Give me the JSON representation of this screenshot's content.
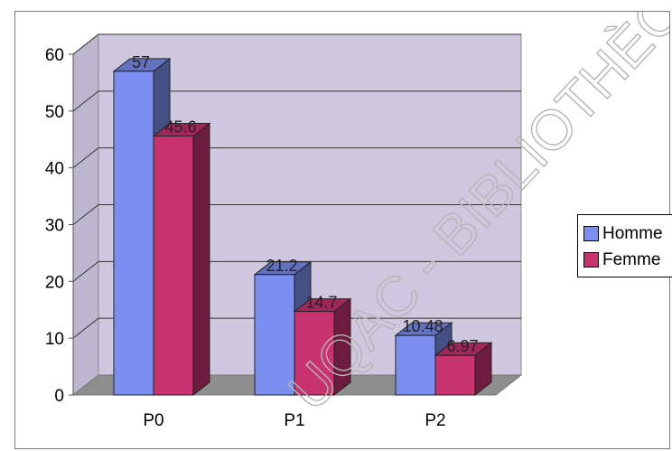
{
  "chart_data": {
    "type": "bar",
    "categories": [
      "P0",
      "P1",
      "P2"
    ],
    "series": [
      {
        "name": "Homme",
        "values": [
          57,
          21.2,
          10.48
        ],
        "labels": [
          "57",
          "21.2",
          "10.48"
        ],
        "color": "#7b8ff0"
      },
      {
        "name": "Femme",
        "values": [
          45.6,
          14.7,
          6.97
        ],
        "labels": [
          "45.6",
          "14.7",
          "6.97"
        ],
        "color": "#c8326e"
      }
    ],
    "title": "",
    "xlabel": "",
    "ylabel": "",
    "ylim": [
      0,
      60
    ],
    "yticks": [
      "0",
      "10",
      "20",
      "30",
      "40",
      "50",
      "60"
    ],
    "grid": true,
    "legend_position": "right",
    "style": "3d-clustered-column",
    "wall_color": "#cfc8df",
    "floor_color": "#8e8e8e"
  },
  "watermark": "UQAC - BIBLIOTHÈQUE"
}
